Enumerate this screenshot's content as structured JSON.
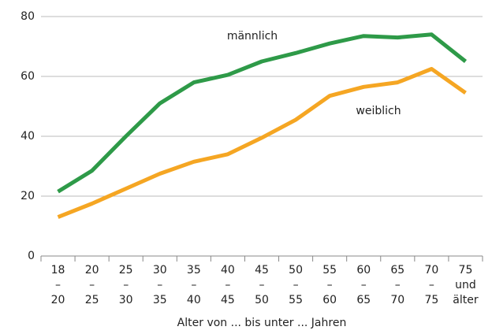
{
  "chart_data": {
    "type": "line",
    "categories": [
      [
        "18",
        "–",
        "20"
      ],
      [
        "20",
        "–",
        "25"
      ],
      [
        "25",
        "–",
        "30"
      ],
      [
        "30",
        "–",
        "35"
      ],
      [
        "35",
        "–",
        "40"
      ],
      [
        "40",
        "–",
        "45"
      ],
      [
        "45",
        "–",
        "50"
      ],
      [
        "50",
        "–",
        "55"
      ],
      [
        "55",
        "–",
        "60"
      ],
      [
        "60",
        "–",
        "65"
      ],
      [
        "65",
        "–",
        "70"
      ],
      [
        "70",
        "–",
        "75"
      ],
      [
        "75",
        "und",
        "älter"
      ]
    ],
    "series": [
      {
        "name": "männlich",
        "color": "#2e9a48",
        "values": [
          21.5,
          28.5,
          40,
          51,
          58,
          60.5,
          65,
          67.8,
          71,
          73.5,
          73,
          74,
          65
        ]
      },
      {
        "name": "weiblich",
        "color": "#f5a623",
        "values": [
          13,
          17.5,
          22.5,
          27.5,
          31.5,
          34,
          39.5,
          45.5,
          53.5,
          56.5,
          58,
          62.5,
          54.5
        ]
      }
    ],
    "x_label": "Alter von ... bis unter ... Jahren",
    "ylim": [
      0,
      80
    ],
    "yticks": [
      0,
      20,
      40,
      60,
      80
    ],
    "grid": true
  }
}
